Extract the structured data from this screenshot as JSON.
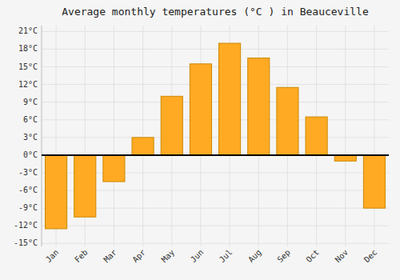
{
  "chart_data": {
    "type": "bar",
    "title": "Average monthly temperatures (°C ) in Beauceville",
    "categories": [
      "Jan",
      "Feb",
      "Mar",
      "Apr",
      "May",
      "Jun",
      "Jul",
      "Aug",
      "Sep",
      "Oct",
      "Nov",
      "Dec"
    ],
    "values": [
      -12.5,
      -10.5,
      -4.5,
      3.0,
      10.0,
      15.5,
      19.0,
      16.5,
      11.5,
      6.5,
      -1.0,
      -9.0
    ],
    "color": "#FFAA22",
    "ylim": [
      -15.5,
      22
    ],
    "yticks": [
      {
        "value": -15,
        "label": "-15°C"
      },
      {
        "value": -12,
        "label": "-12°C"
      },
      {
        "value": -9,
        "label": "-9°C"
      },
      {
        "value": -6,
        "label": "-6°C"
      },
      {
        "value": -3,
        "label": "-3°C"
      },
      {
        "value": 0,
        "label": "0°C"
      },
      {
        "value": 3,
        "label": "3°C"
      },
      {
        "value": 6,
        "label": "6°C"
      },
      {
        "value": 9,
        "label": "9°C"
      },
      {
        "value": 12,
        "label": "12°C"
      },
      {
        "value": 15,
        "label": "15°C"
      },
      {
        "value": 18,
        "label": "18°C"
      },
      {
        "value": 21,
        "label": "21°C"
      }
    ],
    "grid": true
  }
}
